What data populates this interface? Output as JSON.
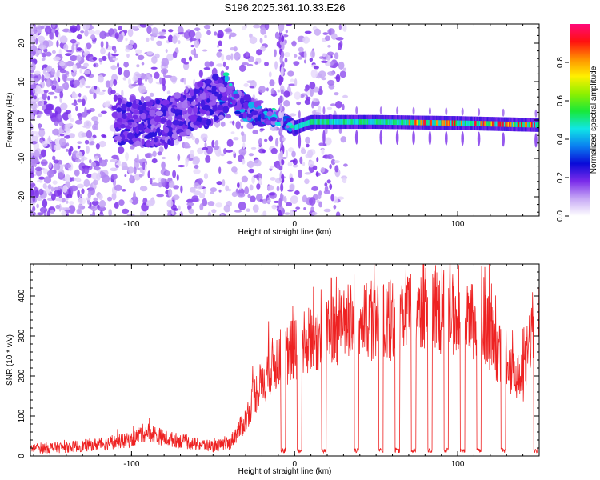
{
  "figure": {
    "title": "S196.2025.361.10.33.E26"
  },
  "chart_data": [
    {
      "type": "heatmap",
      "name": "spectrogram",
      "xlabel": "Height of straight line (km)",
      "ylabel": "Frequency (Hz)",
      "xlim": [
        -162,
        150
      ],
      "ylim": [
        -25,
        25
      ],
      "xticks": [
        -100,
        0,
        100
      ],
      "yticks": [
        -20,
        -10,
        0,
        10,
        20
      ],
      "colorbar": {
        "label": "Normalized spectral amplitude",
        "range": [
          0,
          1
        ],
        "ticks": [
          0.0,
          0.2,
          0.4,
          0.6,
          0.8
        ],
        "tick_labels": [
          "0.0",
          "0.2",
          "0.4",
          "0.6",
          "0.8"
        ],
        "colors": [
          "#ffffff",
          "#c6a8f5",
          "#7a2bea",
          "#0a0ad8",
          "#0a7ff0",
          "#10e6e6",
          "#18e83a",
          "#8ef000",
          "#fff000",
          "#ff9000",
          "#ff1010",
          "#ff0a7a"
        ]
      },
      "ridge_frequency": [
        {
          "x": -100,
          "y": 0.0
        },
        {
          "x": -80,
          "y": -1.0
        },
        {
          "x": -60,
          "y": 3.5
        },
        {
          "x": -40,
          "y": 7.0
        },
        {
          "x": -30,
          "y": 3.0
        },
        {
          "x": -20,
          "y": 1.0
        },
        {
          "x": -10,
          "y": 0.5
        },
        {
          "x": 0,
          "y": -2.0
        },
        {
          "x": 10,
          "y": -0.5
        },
        {
          "x": 50,
          "y": -0.5
        },
        {
          "x": 100,
          "y": -0.8
        },
        {
          "x": 150,
          "y": -1.3
        }
      ]
    },
    {
      "type": "line",
      "name": "snr",
      "xlabel": "Height of straight line (km)",
      "ylabel": "SNR (10 * v/v)",
      "xlim": [
        -162,
        150
      ],
      "ylim": [
        0,
        480
      ],
      "xticks": [
        -100,
        0,
        100
      ],
      "yticks": [
        0,
        100,
        200,
        300,
        400
      ],
      "series": [
        {
          "name": "SNR",
          "color": "#ee2222",
          "x": [
            -160,
            -140,
            -120,
            -100,
            -95,
            -90,
            -80,
            -60,
            -50,
            -40,
            -35,
            -30,
            -25,
            -20,
            -15,
            -10,
            -5,
            0,
            5,
            10,
            15,
            20,
            25,
            30,
            40,
            60,
            75,
            80,
            100,
            115,
            120,
            125,
            130,
            140,
            145,
            150
          ],
          "y": [
            20,
            22,
            30,
            40,
            55,
            60,
            45,
            30,
            25,
            30,
            60,
            90,
            150,
            180,
            220,
            240,
            250,
            270,
            280,
            290,
            300,
            310,
            320,
            330,
            330,
            340,
            370,
            380,
            350,
            330,
            300,
            260,
            210,
            190,
            310,
            340
          ]
        }
      ],
      "dropouts_x": [
        -7,
        3,
        18,
        38,
        53,
        63,
        73,
        83,
        93,
        103,
        113,
        128,
        148
      ]
    }
  ]
}
